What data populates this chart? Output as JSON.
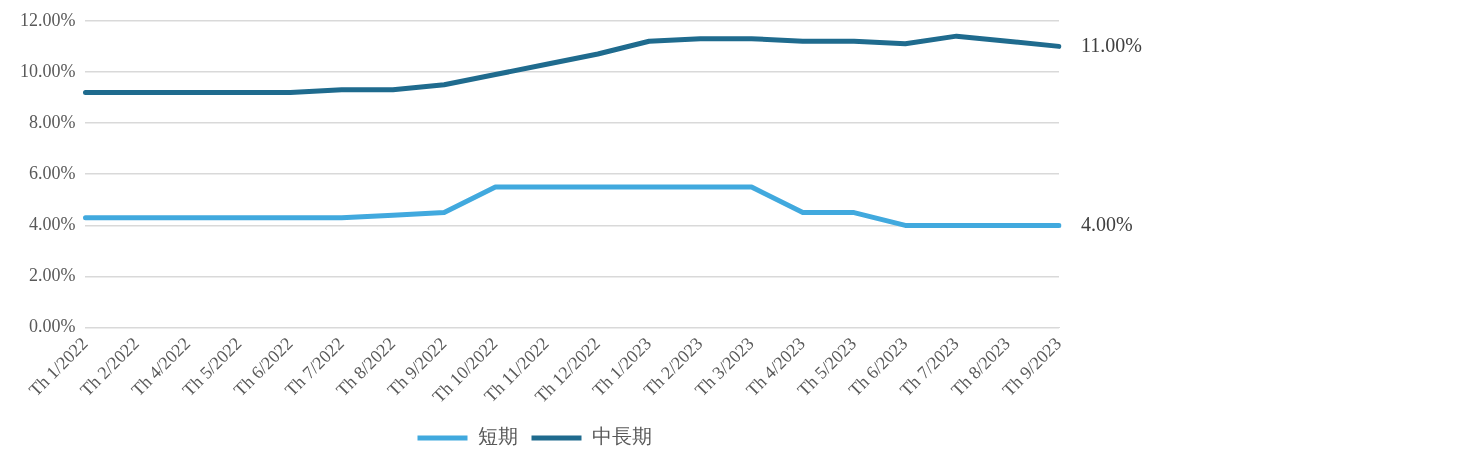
{
  "chart_data": {
    "type": "line",
    "categories": [
      "Th 1/2022",
      "Th 2/2022",
      "Th 4/2022",
      "Th 5/2022",
      "Th 6/2022",
      "Th 7/2022",
      "Th 8/2022",
      "Th 9/2022",
      "Th 10/2022",
      "Th 11/2022",
      "Th 12/2022",
      "Th 1/2023",
      "Th 2/2023",
      "Th 3/2023",
      "Th 4/2023",
      "Th 5/2023",
      "Th 6/2023",
      "Th 7/2023",
      "Th 8/2023",
      "Th 9/2023"
    ],
    "series": [
      {
        "name": "短期",
        "color": "#41a9de",
        "values": [
          4.3,
          4.3,
          4.3,
          4.3,
          4.3,
          4.3,
          4.4,
          4.5,
          5.5,
          5.5,
          5.5,
          5.5,
          5.5,
          5.5,
          4.5,
          4.5,
          4.0,
          4.0,
          4.0,
          4.0
        ],
        "value_labels": [
          null,
          null,
          null,
          null,
          null,
          null,
          null,
          null,
          null,
          null,
          null,
          null,
          null,
          null,
          null,
          null,
          null,
          null,
          null,
          "4.00%"
        ]
      },
      {
        "name": "中長期",
        "color": "#1f6b8e",
        "values": [
          9.2,
          9.2,
          9.2,
          9.2,
          9.2,
          9.3,
          9.3,
          9.5,
          9.9,
          10.3,
          10.7,
          11.2,
          11.3,
          11.3,
          11.2,
          11.2,
          11.1,
          11.4,
          11.2,
          11.0
        ],
        "value_labels": [
          null,
          null,
          null,
          null,
          null,
          null,
          null,
          null,
          null,
          null,
          null,
          null,
          null,
          null,
          null,
          null,
          null,
          null,
          null,
          "11.00%"
        ]
      }
    ],
    "ylim": [
      0,
      12
    ],
    "yticks": [
      {
        "value": 0,
        "label": "0.00%"
      },
      {
        "value": 2,
        "label": "2.00%"
      },
      {
        "value": 4,
        "label": "4.00%"
      },
      {
        "value": 6,
        "label": "6.00%"
      },
      {
        "value": 8,
        "label": "8.00%"
      },
      {
        "value": 10,
        "label": "10.00%"
      },
      {
        "value": 12,
        "label": "12.00%"
      }
    ],
    "grid": "y",
    "legend": "bottom",
    "marker": "none",
    "line_style": "solid"
  }
}
